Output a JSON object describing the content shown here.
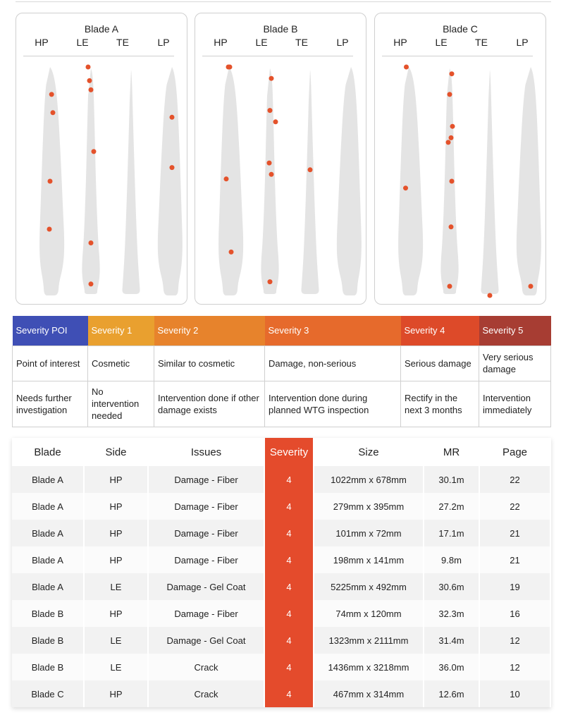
{
  "blades": [
    {
      "title": "Blade A",
      "sides": [
        "HP",
        "LE",
        "TE",
        "LP"
      ],
      "points": {
        "HP": [
          [
            0.22,
            0.12
          ],
          [
            0.4,
            0.2
          ],
          [
            0.0,
            0.5
          ],
          [
            -0.1,
            0.71
          ]
        ],
        "LE": [
          [
            -0.4,
            0.0
          ],
          [
            -0.2,
            0.06
          ],
          [
            0.0,
            0.1
          ],
          [
            0.4,
            0.37
          ],
          [
            0.0,
            0.77
          ],
          [
            0.0,
            0.95
          ]
        ],
        "TE": [],
        "LP": [
          [
            0.0,
            0.22
          ],
          [
            0.0,
            0.44
          ]
        ]
      }
    },
    {
      "title": "Blade B",
      "sides": [
        "HP",
        "LE",
        "TE",
        "LP"
      ],
      "points": {
        "HP": [
          [
            -0.1,
            0.0
          ],
          [
            0.1,
            0.0
          ],
          [
            -0.4,
            0.49
          ],
          [
            0.3,
            0.81
          ]
        ],
        "LE": [
          [
            0.2,
            0.05
          ],
          [
            0.0,
            0.19
          ],
          [
            0.8,
            0.24
          ],
          [
            -0.1,
            0.42
          ],
          [
            0.2,
            0.47
          ],
          [
            0.0,
            0.94
          ]
        ],
        "TE": [
          [
            0.0,
            0.45
          ]
        ],
        "LP": []
      }
    },
    {
      "title": "Blade C",
      "sides": [
        "HP",
        "LE",
        "TE",
        "LP"
      ],
      "points": {
        "HP": [
          [
            -0.35,
            0.0
          ],
          [
            -0.45,
            0.53
          ]
        ],
        "LE": [
          [
            0.3,
            0.03
          ],
          [
            0.0,
            0.12
          ],
          [
            0.4,
            0.26
          ],
          [
            0.2,
            0.31
          ],
          [
            -0.2,
            0.33
          ],
          [
            0.3,
            0.5
          ],
          [
            0.2,
            0.7
          ],
          [
            0.0,
            0.96
          ]
        ],
        "TE": [
          [
            0.0,
            1.0
          ]
        ],
        "LP": [
          [
            0.0,
            0.96
          ]
        ]
      }
    }
  ],
  "severity_legend": {
    "headers": [
      {
        "label": "Severity POI",
        "color": "#3f4fb5"
      },
      {
        "label": "Severity 1",
        "color": "#e9a02f"
      },
      {
        "label": "Severity 2",
        "color": "#e7832c"
      },
      {
        "label": "Severity 3",
        "color": "#e66a2c"
      },
      {
        "label": "Severity 4",
        "color": "#dd4a29"
      },
      {
        "label": "Severity 5",
        "color": "#a73d33"
      }
    ],
    "descriptions": [
      "Point of interest",
      "Cosmetic",
      "Similar to cosmetic",
      "Damage, non-serious",
      "Serious damage",
      "Very serious damage"
    ],
    "actions": [
      "Needs further investigation",
      "No intervention needed",
      "Intervention done if other damage exists",
      "Intervention done during planned WTG inspection",
      "Rectify in the next 3 months",
      "Intervention immediately"
    ]
  },
  "issues_table": {
    "columns": [
      "Blade",
      "Side",
      "Issues",
      "Severity",
      "Size",
      "MR",
      "Page"
    ],
    "rows": [
      [
        "Blade A",
        "HP",
        "Damage - Fiber",
        "4",
        "1022mm x 678mm",
        "30.1m",
        "22"
      ],
      [
        "Blade A",
        "HP",
        "Damage - Fiber",
        "4",
        "279mm x 395mm",
        "27.2m",
        "22"
      ],
      [
        "Blade A",
        "HP",
        "Damage - Fiber",
        "4",
        "101mm x 72mm",
        "17.1m",
        "21"
      ],
      [
        "Blade A",
        "HP",
        "Damage - Fiber",
        "4",
        "198mm x 141mm",
        "9.8m",
        "21"
      ],
      [
        "Blade A",
        "LE",
        "Damage - Gel Coat",
        "4",
        "5225mm x 492mm",
        "30.6m",
        "19"
      ],
      [
        "Blade B",
        "HP",
        "Damage - Fiber",
        "4",
        "74mm x 120mm",
        "32.3m",
        "16"
      ],
      [
        "Blade B",
        "LE",
        "Damage - Gel Coat",
        "4",
        "1323mm x 2111mm",
        "31.4m",
        "12"
      ],
      [
        "Blade B",
        "LE",
        "Crack",
        "4",
        "1436mm x 3218mm",
        "36.0m",
        "12"
      ],
      [
        "Blade C",
        "HP",
        "Crack",
        "4",
        "467mm x 314mm",
        "12.6m",
        "10"
      ]
    ]
  },
  "colors": {
    "marker": "#e4522b",
    "blade_fill": "#e4e4e4",
    "severity_cell": "#e44b2c"
  }
}
